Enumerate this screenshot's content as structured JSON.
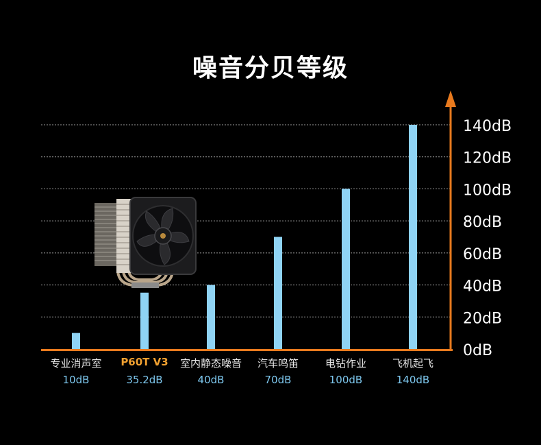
{
  "chart_data": {
    "type": "bar",
    "title": "噪音分贝等级",
    "categories": [
      "专业消声室",
      "P60T V3",
      "室内静态噪音",
      "汽车鸣笛",
      "电钻作业",
      "飞机起飞"
    ],
    "values": [
      10,
      35.2,
      40,
      70,
      100,
      140
    ],
    "value_labels": [
      "10dB",
      "35.2dB",
      "40dB",
      "70dB",
      "100dB",
      "140dB"
    ],
    "highlight_category": "P60T V3",
    "ylim": [
      0,
      140
    ],
    "y_ticks": [
      0,
      20,
      40,
      60,
      80,
      100,
      120,
      140
    ],
    "y_tick_labels": [
      "0dB",
      "20dB",
      "40dB",
      "60dB",
      "80dB",
      "100dB",
      "120dB",
      "140dB"
    ],
    "y_axis_position": "right",
    "grid": true,
    "colors": {
      "bar": "#8fd3f4",
      "axis": "#e87a1e",
      "highlight_label": "#f0a030",
      "value_label": "#7ec8ef",
      "grid": "#9a9a9a"
    }
  },
  "product_image": "cpu-cooler-icon"
}
